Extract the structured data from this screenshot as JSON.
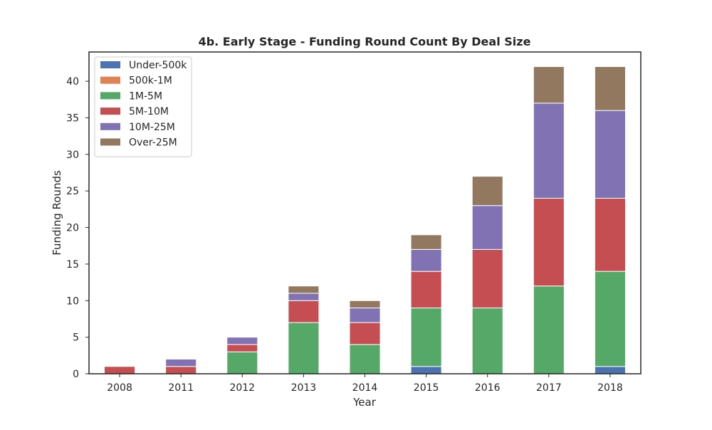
{
  "chart_data": {
    "type": "bar",
    "stacked": true,
    "title": "4b. Early Stage - Funding Round Count By Deal Size",
    "xlabel": "Year",
    "ylabel": "Funding Rounds",
    "categories": [
      "2008",
      "2011",
      "2012",
      "2013",
      "2014",
      "2015",
      "2016",
      "2017",
      "2018"
    ],
    "ylim": [
      0,
      44
    ],
    "yticks": [
      0,
      5,
      10,
      15,
      20,
      25,
      30,
      35,
      40
    ],
    "grid": false,
    "legend_position": "top-left",
    "series": [
      {
        "name": "Under-500k",
        "color": "#4c72b0",
        "values": [
          0,
          0,
          0,
          0,
          0,
          1,
          0,
          0,
          1
        ]
      },
      {
        "name": "500k-1M",
        "color": "#dd8452",
        "values": [
          0,
          0,
          0,
          0,
          0,
          0,
          0,
          0,
          0
        ]
      },
      {
        "name": "1M-5M",
        "color": "#55a868",
        "values": [
          0,
          0,
          3,
          7,
          4,
          8,
          9,
          12,
          13
        ]
      },
      {
        "name": "5M-10M",
        "color": "#c44e52",
        "values": [
          1,
          1,
          1,
          3,
          3,
          5,
          8,
          12,
          10
        ]
      },
      {
        "name": "10M-25M",
        "color": "#8172b3",
        "values": [
          0,
          1,
          1,
          1,
          2,
          3,
          6,
          13,
          12
        ]
      },
      {
        "name": "Over-25M",
        "color": "#937860",
        "values": [
          0,
          0,
          0,
          1,
          1,
          2,
          4,
          5,
          6
        ]
      }
    ]
  }
}
